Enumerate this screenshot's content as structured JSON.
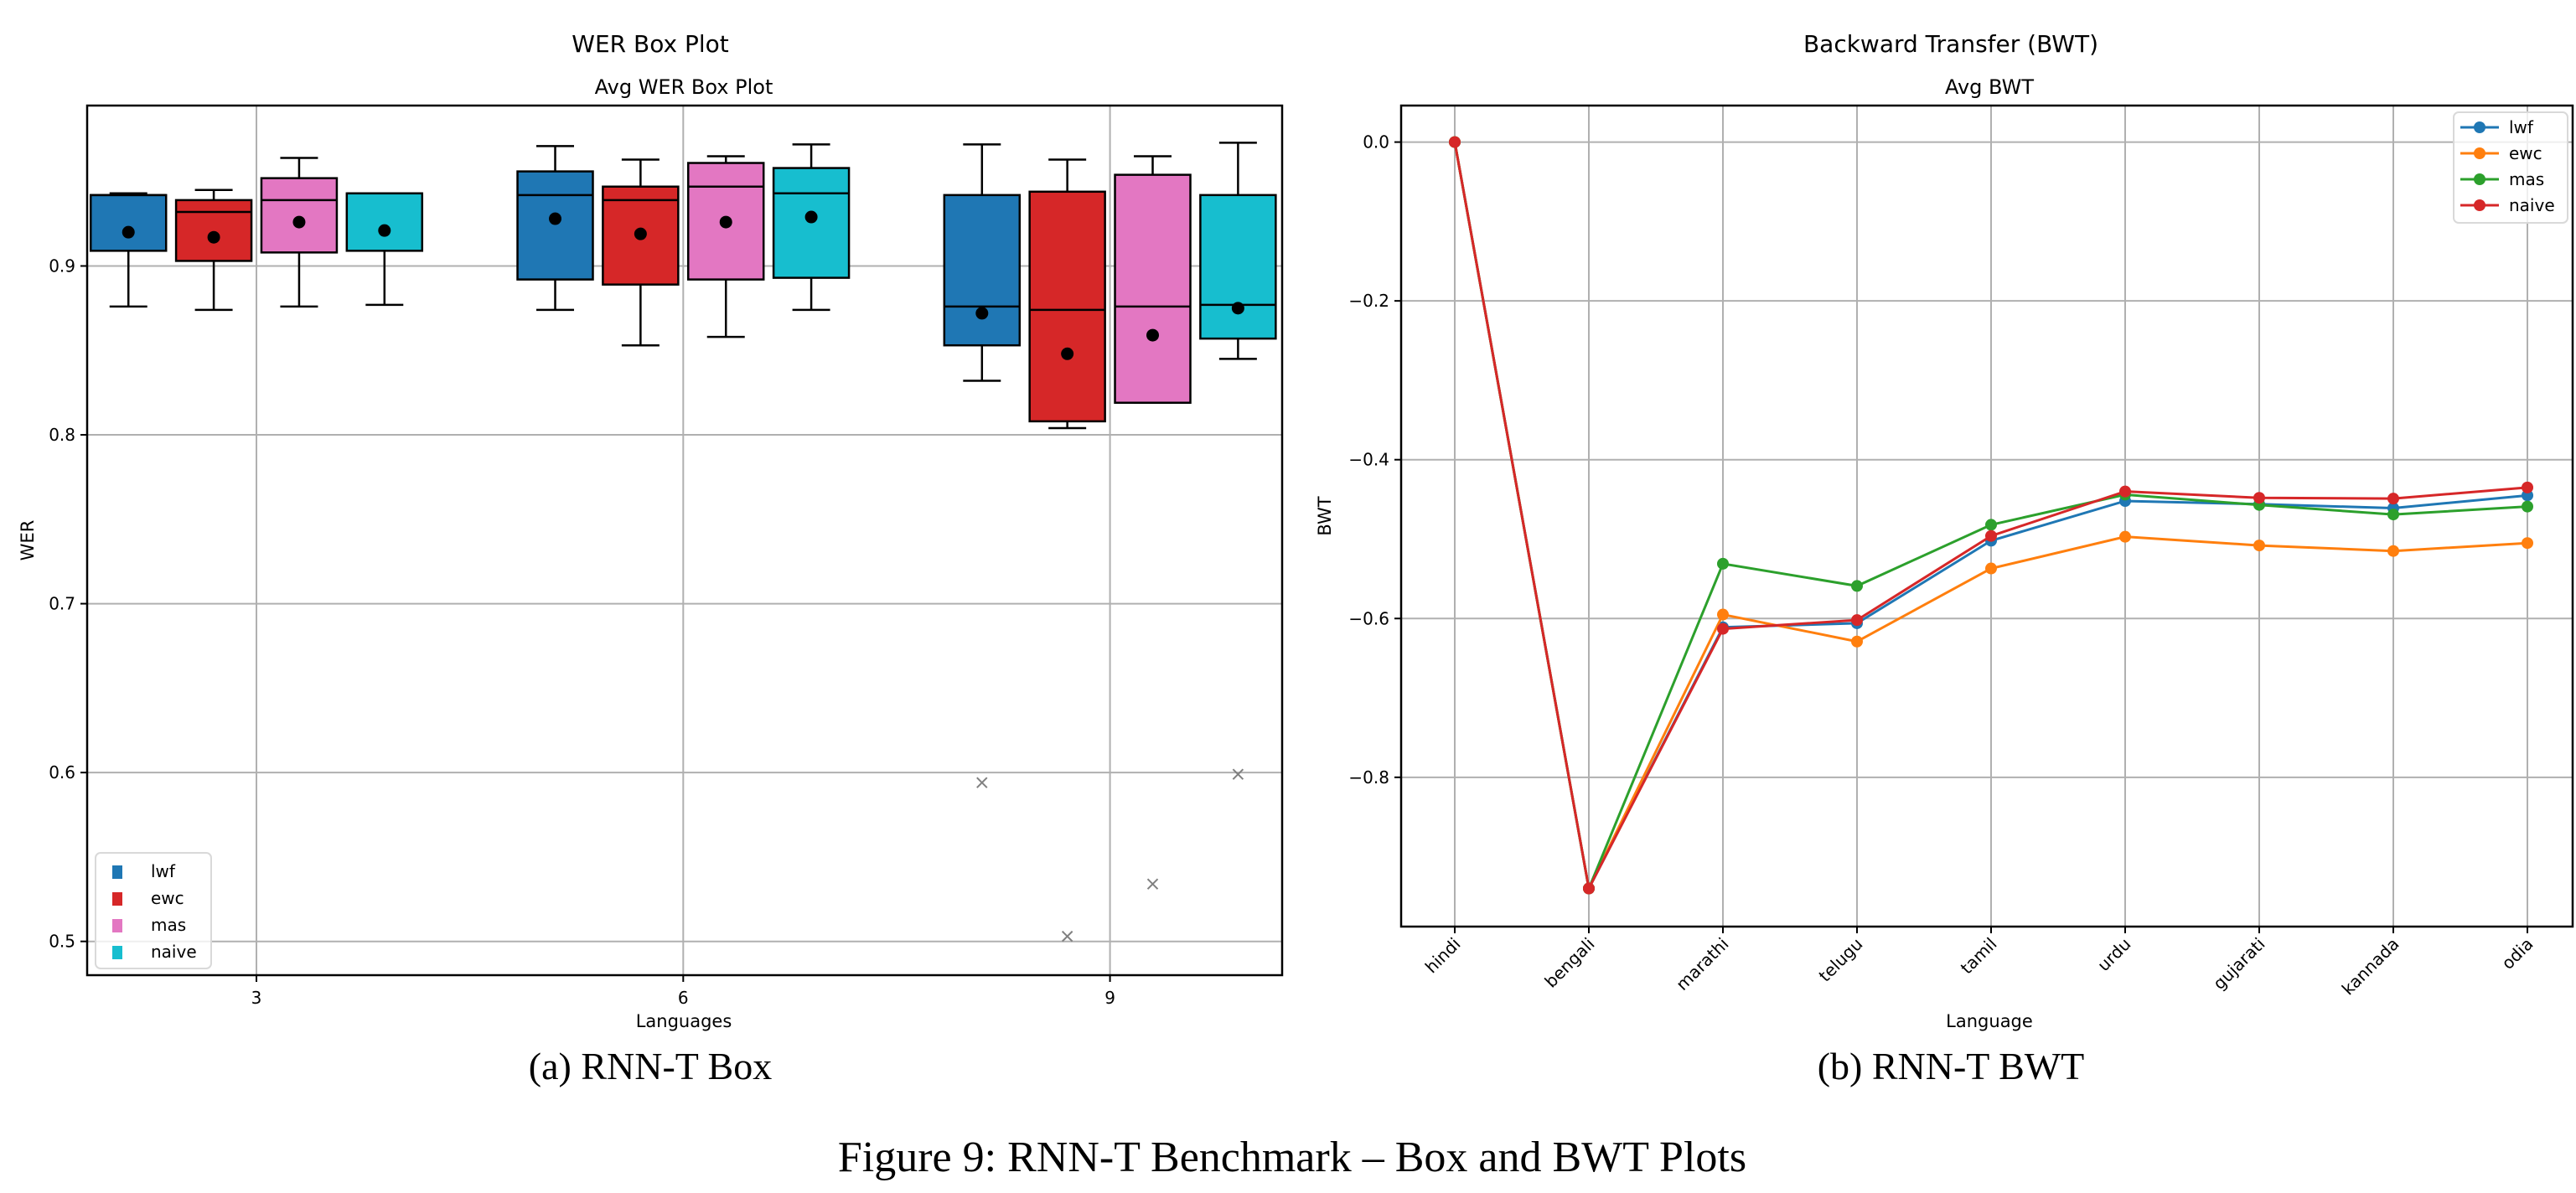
{
  "figure_caption": "Figure 9: RNN-T Benchmark – Box and BWT Plots",
  "colors": {
    "lwf": "#1f77b4",
    "ewc": "#d62728",
    "mas": "#e377c2",
    "naive": "#17becf",
    "line_lwf": "#1f77b4",
    "line_ewc": "#ff7f0e",
    "line_mas": "#2ca02c",
    "line_naive": "#d62728",
    "grid": "#b0b0b0",
    "outlier": "#808080"
  },
  "chart_data": [
    {
      "type": "box",
      "suptitle": "WER Box Plot",
      "title": "Avg WER Box Plot",
      "subcaption": "(a) RNN-T Box",
      "xlabel": "Languages",
      "ylabel": "WER",
      "xticks": [
        3,
        6,
        9
      ],
      "xlim": [
        1.81,
        10.21
      ],
      "yticks": [
        "0.5",
        "0.6",
        "0.7",
        "0.8",
        "0.9"
      ],
      "ylim": [
        0.48,
        0.995
      ],
      "grid": true,
      "legend": {
        "placement": "lower-left",
        "entries": [
          "lwf",
          "ewc",
          "mas",
          "naive"
        ]
      },
      "groups": [
        {
          "center": 3,
          "boxes": [
            {
              "series": "lwf",
              "whislo": 0.876,
              "q1": 0.909,
              "median": 0.942,
              "q3": 0.942,
              "whishi": 0.943,
              "mean": 0.92,
              "outliers": []
            },
            {
              "series": "ewc",
              "whislo": 0.874,
              "q1": 0.903,
              "median": 0.932,
              "q3": 0.939,
              "whishi": 0.945,
              "mean": 0.917,
              "outliers": []
            },
            {
              "series": "mas",
              "whislo": 0.876,
              "q1": 0.908,
              "median": 0.939,
              "q3": 0.952,
              "whishi": 0.964,
              "mean": 0.926,
              "outliers": []
            },
            {
              "series": "naive",
              "whislo": 0.877,
              "q1": 0.909,
              "median": 0.943,
              "q3": 0.943,
              "whishi": 0.943,
              "mean": 0.921,
              "outliers": []
            }
          ]
        },
        {
          "center": 6,
          "boxes": [
            {
              "series": "lwf",
              "whislo": 0.874,
              "q1": 0.892,
              "median": 0.942,
              "q3": 0.956,
              "whishi": 0.971,
              "mean": 0.928,
              "outliers": []
            },
            {
              "series": "ewc",
              "whislo": 0.853,
              "q1": 0.889,
              "median": 0.939,
              "q3": 0.947,
              "whishi": 0.963,
              "mean": 0.919,
              "outliers": []
            },
            {
              "series": "mas",
              "whislo": 0.858,
              "q1": 0.892,
              "median": 0.947,
              "q3": 0.961,
              "whishi": 0.965,
              "mean": 0.926,
              "outliers": []
            },
            {
              "series": "naive",
              "whislo": 0.874,
              "q1": 0.893,
              "median": 0.943,
              "q3": 0.958,
              "whishi": 0.972,
              "mean": 0.929,
              "outliers": []
            }
          ]
        },
        {
          "center": 9,
          "boxes": [
            {
              "series": "lwf",
              "whislo": 0.832,
              "q1": 0.853,
              "median": 0.876,
              "q3": 0.942,
              "whishi": 0.972,
              "mean": 0.872,
              "outliers": [
                0.594
              ]
            },
            {
              "series": "ewc",
              "whislo": 0.804,
              "q1": 0.808,
              "median": 0.874,
              "q3": 0.944,
              "whishi": 0.963,
              "mean": 0.848,
              "outliers": [
                0.503
              ]
            },
            {
              "series": "mas",
              "whislo": 0.819,
              "q1": 0.819,
              "median": 0.876,
              "q3": 0.954,
              "whishi": 0.965,
              "mean": 0.859,
              "outliers": [
                0.534
              ]
            },
            {
              "series": "naive",
              "whislo": 0.845,
              "q1": 0.857,
              "median": 0.877,
              "q3": 0.942,
              "whishi": 0.973,
              "mean": 0.875,
              "outliers": [
                0.599
              ]
            }
          ]
        }
      ]
    },
    {
      "type": "line",
      "suptitle": "Backward Transfer (BWT)",
      "title": "Avg BWT",
      "subcaption": "(b) RNN-T BWT",
      "xlabel": "Language",
      "ylabel": "BWT",
      "categories": [
        "hindi",
        "bengali",
        "marathi",
        "telugu",
        "tamil",
        "urdu",
        "gujarati",
        "kannada",
        "odia"
      ],
      "yticks": [
        "0.0",
        "−0.2",
        "−0.4",
        "−0.6",
        "−0.8"
      ],
      "ytick_values": [
        0.0,
        -0.2,
        -0.4,
        -0.6,
        -0.8
      ],
      "ylim": [
        -0.988,
        0.046
      ],
      "grid": true,
      "legend": {
        "placement": "top-right",
        "entries": [
          "lwf",
          "ewc",
          "mas",
          "naive"
        ]
      },
      "series": [
        {
          "name": "lwf",
          "values": [
            0.0,
            -0.94,
            -0.611,
            -0.606,
            -0.502,
            -0.452,
            -0.456,
            -0.461,
            -0.445
          ]
        },
        {
          "name": "ewc",
          "values": [
            0.0,
            -0.94,
            -0.595,
            -0.629,
            -0.537,
            -0.497,
            -0.508,
            -0.515,
            -0.505
          ]
        },
        {
          "name": "mas",
          "values": [
            0.0,
            -0.94,
            -0.531,
            -0.559,
            -0.482,
            -0.444,
            -0.457,
            -0.469,
            -0.459
          ]
        },
        {
          "name": "naive",
          "values": [
            0.0,
            -0.94,
            -0.613,
            -0.602,
            -0.496,
            -0.44,
            -0.448,
            -0.449,
            -0.435
          ]
        }
      ]
    }
  ]
}
